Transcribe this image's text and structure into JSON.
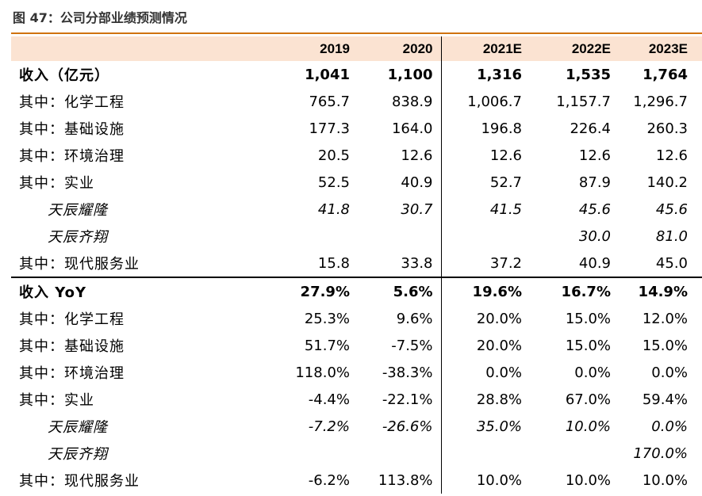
{
  "title": "图 47：公司分部业绩预测情况",
  "columns": [
    "2019",
    "2020",
    "2021E",
    "2022E",
    "2023E"
  ],
  "rows": [
    {
      "label": "收入（亿元）",
      "values": [
        "1,041",
        "1,100",
        "1,316",
        "1,535",
        "1,764"
      ]
    },
    {
      "label": "其中：化学工程",
      "values": [
        "765.7",
        "838.9",
        "1,006.7",
        "1,157.7",
        "1,296.7"
      ]
    },
    {
      "label": "其中：基础设施",
      "values": [
        "177.3",
        "164.0",
        "196.8",
        "226.4",
        "260.3"
      ]
    },
    {
      "label": "其中：环境治理",
      "values": [
        "20.5",
        "12.6",
        "12.6",
        "12.6",
        "12.6"
      ]
    },
    {
      "label": "其中：实业",
      "values": [
        "52.5",
        "40.9",
        "52.7",
        "87.9",
        "140.2"
      ]
    },
    {
      "label": "天辰耀隆",
      "values": [
        "41.8",
        "30.7",
        "41.5",
        "45.6",
        "45.6"
      ]
    },
    {
      "label": "天辰齐翔",
      "values": [
        "",
        "",
        "",
        "30.0",
        "81.0"
      ]
    },
    {
      "label": "其中：现代服务业",
      "values": [
        "15.8",
        "33.8",
        "37.2",
        "40.9",
        "45.0"
      ]
    },
    {
      "label": "收入 YoY",
      "values": [
        "27.9%",
        "5.6%",
        "19.6%",
        "16.7%",
        "14.9%"
      ]
    },
    {
      "label": "其中：化学工程",
      "values": [
        "25.3%",
        "9.6%",
        "20.0%",
        "15.0%",
        "12.0%"
      ]
    },
    {
      "label": "其中：基础设施",
      "values": [
        "51.7%",
        "-7.5%",
        "20.0%",
        "15.0%",
        "15.0%"
      ]
    },
    {
      "label": "其中：环境治理",
      "values": [
        "118.0%",
        "-38.3%",
        "0.0%",
        "0.0%",
        "0.0%"
      ]
    },
    {
      "label": "其中：实业",
      "values": [
        "-4.4%",
        "-22.1%",
        "28.8%",
        "67.0%",
        "59.4%"
      ]
    },
    {
      "label": "天辰耀隆",
      "values": [
        "-7.2%",
        "-26.6%",
        "35.0%",
        "10.0%",
        "0.0%"
      ]
    },
    {
      "label": "天辰齐翔",
      "values": [
        "",
        "",
        "",
        "",
        "170.0%"
      ]
    },
    {
      "label": "其中：现代服务业",
      "values": [
        "-6.2%",
        "113.8%",
        "10.0%",
        "10.0%",
        "10.0%"
      ]
    }
  ]
}
